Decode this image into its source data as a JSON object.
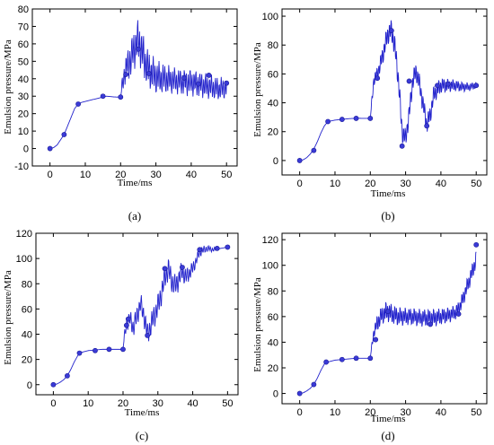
{
  "chart_data": [
    {
      "type": "line",
      "panel_label": "(a)",
      "xlabel": "Time/ms",
      "ylabel": "Emulsion pressure/MPa",
      "xlim": [
        -5,
        53
      ],
      "ylim": [
        -10,
        80
      ],
      "xticks": [
        0,
        10,
        20,
        30,
        40,
        50
      ],
      "yticks": [
        -10,
        0,
        10,
        20,
        30,
        40,
        50,
        60,
        70,
        80
      ],
      "line_color": "#2222cc",
      "marker_color": "#3a3ad6",
      "base_x": [
        0,
        1,
        2,
        3,
        4,
        5,
        6,
        7,
        8,
        9,
        10,
        11,
        12,
        13,
        14,
        15,
        16,
        17,
        18,
        19,
        20,
        20.5,
        21,
        21.5,
        22,
        23,
        24,
        25,
        26,
        27,
        28,
        29,
        30,
        32,
        35,
        38,
        40,
        42,
        44,
        46,
        48,
        50
      ],
      "base_y": [
        0,
        0.5,
        2,
        5,
        8,
        13,
        18,
        23,
        25.5,
        26.5,
        27,
        27.5,
        28,
        28.5,
        29,
        29.5,
        30,
        29.8,
        29.6,
        29.5,
        29.5,
        36,
        42,
        46,
        48,
        52,
        58,
        62,
        56,
        49,
        45,
        43,
        41,
        40,
        39,
        38,
        38,
        37,
        36,
        35,
        34,
        35
      ],
      "osc_start": 20.3,
      "osc_end": 50,
      "osc_period": 0.55,
      "osc_amp": [
        [
          20.3,
          4
        ],
        [
          23,
          9
        ],
        [
          26,
          10
        ],
        [
          29,
          8
        ],
        [
          35,
          6
        ],
        [
          42,
          6
        ],
        [
          50,
          5
        ]
      ],
      "markers": [
        [
          0,
          0
        ],
        [
          4,
          8
        ],
        [
          8,
          25.5
        ],
        [
          15,
          30
        ],
        [
          20,
          29.5
        ],
        [
          21.5,
          42.5
        ],
        [
          25,
          57
        ],
        [
          28,
          43
        ],
        [
          38,
          40.5
        ],
        [
          42,
          37
        ],
        [
          45,
          42
        ],
        [
          50,
          37.5
        ]
      ]
    },
    {
      "type": "line",
      "panel_label": "(b)",
      "xlabel": "Time/ms",
      "ylabel": "Emulsion pressure/MPa",
      "xlim": [
        -5,
        53
      ],
      "ylim": [
        -10,
        105
      ],
      "xticks": [
        0,
        10,
        20,
        30,
        40,
        50
      ],
      "yticks": [
        0,
        20,
        40,
        60,
        80,
        100
      ],
      "line_color": "#2222cc",
      "marker_color": "#3a3ad6",
      "base_x": [
        0,
        1,
        2,
        3,
        4,
        5,
        6,
        7,
        8,
        9,
        10,
        12,
        14,
        16,
        18,
        20,
        20.5,
        21,
        22,
        23,
        24,
        25,
        26,
        27,
        28,
        29,
        30,
        31,
        32,
        33,
        34,
        35,
        36,
        37,
        38,
        40,
        42,
        44,
        46,
        48,
        50
      ],
      "base_y": [
        0,
        0.5,
        2,
        4.5,
        8,
        13,
        19,
        24,
        27,
        27.5,
        28,
        28.5,
        29,
        29.3,
        29.2,
        29.2,
        42,
        56,
        60,
        68,
        78,
        88,
        90,
        78,
        55,
        20,
        15,
        32,
        55,
        62,
        52,
        38,
        25,
        32,
        46,
        52,
        52,
        52,
        51,
        51,
        52
      ],
      "osc_start": 20.3,
      "osc_end": 50,
      "osc_period": 0.5,
      "osc_amp": [
        [
          20.3,
          3
        ],
        [
          24,
          6
        ],
        [
          27,
          7
        ],
        [
          30,
          6
        ],
        [
          36,
          6
        ],
        [
          42,
          4
        ],
        [
          50,
          2
        ]
      ],
      "markers": [
        [
          0,
          0
        ],
        [
          4,
          7
        ],
        [
          8,
          27
        ],
        [
          12,
          28.5
        ],
        [
          16,
          29.2
        ],
        [
          20,
          29.2
        ],
        [
          22,
          57
        ],
        [
          26,
          90
        ],
        [
          29,
          10
        ],
        [
          31,
          55
        ],
        [
          36,
          24
        ],
        [
          39,
          52
        ],
        [
          42,
          53
        ],
        [
          50,
          52
        ]
      ]
    },
    {
      "type": "line",
      "panel_label": "(c)",
      "xlabel": "Time/ms",
      "ylabel": "Emulsion pressure/MPa",
      "xlim": [
        -5,
        53
      ],
      "ylim": [
        -8,
        120
      ],
      "xticks": [
        0,
        10,
        20,
        30,
        40,
        50
      ],
      "yticks": [
        0,
        20,
        40,
        60,
        80,
        100,
        120
      ],
      "line_color": "#2222cc",
      "marker_color": "#3a3ad6",
      "base_x": [
        0,
        1,
        2,
        3,
        4,
        5,
        6,
        7,
        8,
        9,
        10,
        12,
        14,
        16,
        18,
        19.5,
        20,
        20.5,
        21,
        22,
        23,
        24,
        25,
        26,
        27,
        28,
        29,
        30,
        31,
        32,
        33,
        34,
        35,
        36,
        37,
        38,
        40,
        42,
        44,
        46,
        48,
        50
      ],
      "base_y": [
        0,
        0.5,
        2,
        4,
        7,
        12,
        18,
        23,
        25.5,
        26.3,
        27,
        27.5,
        28,
        28,
        28,
        28,
        28.5,
        40,
        48,
        52,
        45,
        55,
        64,
        55,
        40,
        47,
        55,
        62,
        72,
        85,
        92,
        82,
        78,
        84,
        90,
        85,
        92,
        105,
        108,
        107,
        108,
        109
      ],
      "osc_start": 20.3,
      "osc_end": 47,
      "osc_period": 0.6,
      "osc_amp": [
        [
          20.3,
          3
        ],
        [
          22,
          6
        ],
        [
          26,
          7
        ],
        [
          30,
          8
        ],
        [
          36,
          7
        ],
        [
          42,
          3
        ],
        [
          47,
          1
        ]
      ],
      "markers": [
        [
          0,
          0
        ],
        [
          4,
          7
        ],
        [
          7.5,
          25
        ],
        [
          12,
          27
        ],
        [
          16,
          28
        ],
        [
          20,
          28
        ],
        [
          21,
          47
        ],
        [
          21.5,
          52
        ],
        [
          27,
          39
        ],
        [
          32,
          92
        ],
        [
          37,
          93
        ],
        [
          42,
          107
        ],
        [
          47,
          108
        ],
        [
          50,
          109
        ]
      ]
    },
    {
      "type": "line",
      "panel_label": "(d)",
      "xlabel": "Time/ms",
      "ylabel": "Emulsion pressure/MPa",
      "xlim": [
        -5,
        53
      ],
      "ylim": [
        -8,
        125
      ],
      "xticks": [
        0,
        10,
        20,
        30,
        40,
        50
      ],
      "yticks": [
        0,
        20,
        40,
        60,
        80,
        100,
        120
      ],
      "line_color": "#2222cc",
      "marker_color": "#3a3ad6",
      "base_x": [
        0,
        1,
        2,
        3,
        4,
        5,
        6,
        7,
        8,
        9,
        10,
        12,
        14,
        16,
        18,
        19.5,
        20,
        20.5,
        21,
        22,
        23,
        24,
        25,
        26,
        28,
        30,
        32,
        34,
        36,
        38,
        40,
        42,
        44,
        45,
        46,
        47,
        48,
        49,
        50
      ],
      "base_y": [
        0,
        0.5,
        2,
        4,
        7,
        12,
        18,
        23,
        24.5,
        25.3,
        26,
        26.5,
        27,
        27.5,
        27.5,
        27.5,
        28,
        38,
        48,
        55,
        60,
        63,
        64,
        62,
        60,
        60,
        60,
        59,
        59,
        59,
        60,
        61,
        63,
        66,
        72,
        80,
        88,
        96,
        105
      ],
      "osc_start": 20.3,
      "osc_end": 50,
      "osc_period": 0.5,
      "osc_amp": [
        [
          20.3,
          2
        ],
        [
          22,
          6
        ],
        [
          25,
          7
        ],
        [
          30,
          6
        ],
        [
          38,
          6
        ],
        [
          44,
          5
        ],
        [
          50,
          6
        ]
      ],
      "markers": [
        [
          0,
          0
        ],
        [
          4,
          7
        ],
        [
          7.5,
          24.5
        ],
        [
          12,
          26.5
        ],
        [
          16,
          27.5
        ],
        [
          20,
          27.5
        ],
        [
          21.5,
          42
        ],
        [
          25,
          64
        ],
        [
          37,
          54
        ],
        [
          45,
          62
        ],
        [
          50,
          116
        ]
      ]
    }
  ]
}
